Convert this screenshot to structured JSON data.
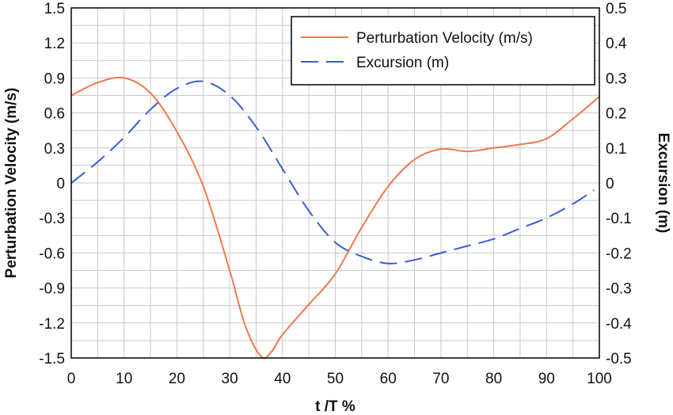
{
  "chart_data": {
    "type": "line",
    "xlabel": "t /T %",
    "ylabel": "Perturbation Velocity (m/s)",
    "y2label": "Excursion (m)",
    "xlim": [
      0,
      100
    ],
    "ylim": [
      -1.5,
      1.5
    ],
    "y2lim": [
      -0.5,
      0.5
    ],
    "x_ticks": [
      "0",
      "10",
      "20",
      "30",
      "40",
      "50",
      "60",
      "70",
      "80",
      "90",
      "100"
    ],
    "y_ticks": [
      "1.5",
      "1.2",
      "0.9",
      "0.6",
      "0.3",
      "0",
      "-0.3",
      "-0.6",
      "-0.9",
      "-1.2",
      "-1.5"
    ],
    "y2_ticks": [
      "0.5",
      "0.4",
      "0.3",
      "0.2",
      "0.1",
      "0",
      "-0.1",
      "-0.2",
      "-0.3",
      "-0.4",
      "-0.5"
    ],
    "grid": true,
    "legend_position": "top-right",
    "series": [
      {
        "name": "Perturbation Velocity (m/s)",
        "axis": "left",
        "color": "#f07850",
        "style": "solid",
        "x": [
          0,
          5,
          10,
          15,
          20,
          25,
          30,
          33,
          36,
          38,
          40,
          45,
          50,
          55,
          60,
          65,
          70,
          75,
          80,
          85,
          90,
          95,
          100
        ],
        "y": [
          0.75,
          0.86,
          0.9,
          0.77,
          0.44,
          -0.03,
          -0.75,
          -1.23,
          -1.49,
          -1.44,
          -1.3,
          -1.04,
          -0.78,
          -0.38,
          -0.03,
          0.2,
          0.29,
          0.27,
          0.3,
          0.33,
          0.38,
          0.55,
          0.74
        ]
      },
      {
        "name": "Excursion (m)",
        "axis": "right",
        "color": "#3a5bd9",
        "style": "dashed",
        "x": [
          0,
          5,
          10,
          15,
          20,
          25,
          30,
          35,
          40,
          45,
          50,
          55,
          60,
          65,
          70,
          75,
          80,
          85,
          90,
          95,
          99
        ],
        "y": [
          0.0,
          0.06,
          0.13,
          0.21,
          0.27,
          0.29,
          0.25,
          0.16,
          0.04,
          -0.08,
          -0.17,
          -0.21,
          -0.23,
          -0.22,
          -0.2,
          -0.18,
          -0.16,
          -0.13,
          -0.1,
          -0.06,
          -0.02
        ]
      }
    ]
  }
}
